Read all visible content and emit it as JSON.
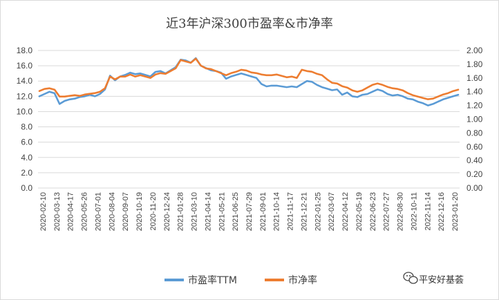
{
  "chart_data": {
    "type": "line",
    "title": "近3年沪深300市盈率&市净率",
    "xlabel": "",
    "ylabel": "",
    "y_left_ticks": [
      "0.0",
      "2.0",
      "4.0",
      "6.0",
      "8.0",
      "10.0",
      "12.0",
      "14.0",
      "16.0",
      "18.0"
    ],
    "y_right_ticks": [
      "0.00",
      "0.20",
      "0.40",
      "0.60",
      "0.80",
      "1.00",
      "1.20",
      "1.40",
      "1.60",
      "1.80",
      "2.00"
    ],
    "ylim_left": [
      0,
      18
    ],
    "ylim_right": [
      0,
      2
    ],
    "x_ticks": [
      "2020-02-10",
      "2020-03-13",
      "2020-04-17",
      "2020-05-26",
      "2020-07-01",
      "2020-08-04",
      "2020-09-07",
      "2020-10-19",
      "2020-11-20",
      "2020-12-24",
      "2021-01-28",
      "2021-03-10",
      "2021-04-14",
      "2021-05-21",
      "2021-06-25",
      "2021-07-29",
      "2021-09-01",
      "2021-10-14",
      "2021-11-17",
      "2021-12-21",
      "2022-01-25",
      "2022-03-07",
      "2022-04-12",
      "2022-05-19",
      "2022-06-23",
      "2022-07-27",
      "2022-08-30",
      "2022-10-11",
      "2022-11-14",
      "2022-12-16",
      "2023-01-20"
    ],
    "legend_position": "bottom",
    "grid": true,
    "series": [
      {
        "name": "市盈率TTM",
        "axis": "left",
        "color": "#5B9BD5",
        "values": [
          12.0,
          12.3,
          12.6,
          12.4,
          11.0,
          11.4,
          11.6,
          11.7,
          11.9,
          12.0,
          12.2,
          12.0,
          12.3,
          12.9,
          14.7,
          14.1,
          14.6,
          14.8,
          15.1,
          14.9,
          15.0,
          14.8,
          14.6,
          15.2,
          15.3,
          15.0,
          15.4,
          15.8,
          16.8,
          16.7,
          16.4,
          17.0,
          16.0,
          15.7,
          15.4,
          15.3,
          15.1,
          14.3,
          14.6,
          14.8,
          15.0,
          14.8,
          14.6,
          14.4,
          13.6,
          13.3,
          13.4,
          13.4,
          13.3,
          13.2,
          13.3,
          13.2,
          13.6,
          14.0,
          13.9,
          13.5,
          13.2,
          13.0,
          12.8,
          12.9,
          12.2,
          12.5,
          12.0,
          11.9,
          12.2,
          12.3,
          12.6,
          12.9,
          12.7,
          12.3,
          12.1,
          12.2,
          12.0,
          11.7,
          11.6,
          11.3,
          11.1,
          10.8,
          11.0,
          11.3,
          11.6,
          11.8,
          12.0,
          12.2
        ]
      },
      {
        "name": "市净率",
        "axis": "right",
        "color": "#ED7D31",
        "values": [
          1.41,
          1.44,
          1.45,
          1.43,
          1.33,
          1.33,
          1.34,
          1.35,
          1.34,
          1.36,
          1.37,
          1.38,
          1.4,
          1.45,
          1.62,
          1.58,
          1.62,
          1.62,
          1.65,
          1.62,
          1.64,
          1.62,
          1.6,
          1.65,
          1.67,
          1.66,
          1.7,
          1.74,
          1.86,
          1.84,
          1.82,
          1.88,
          1.78,
          1.74,
          1.73,
          1.7,
          1.67,
          1.64,
          1.67,
          1.69,
          1.72,
          1.71,
          1.68,
          1.67,
          1.65,
          1.64,
          1.64,
          1.65,
          1.63,
          1.61,
          1.62,
          1.6,
          1.72,
          1.7,
          1.69,
          1.66,
          1.64,
          1.58,
          1.53,
          1.52,
          1.48,
          1.46,
          1.42,
          1.4,
          1.42,
          1.46,
          1.5,
          1.52,
          1.5,
          1.47,
          1.45,
          1.44,
          1.42,
          1.38,
          1.35,
          1.33,
          1.31,
          1.29,
          1.3,
          1.33,
          1.36,
          1.38,
          1.41,
          1.43
        ]
      }
    ]
  },
  "watermark": {
    "text": "平安好基荟",
    "icon": "wechat-icon"
  }
}
